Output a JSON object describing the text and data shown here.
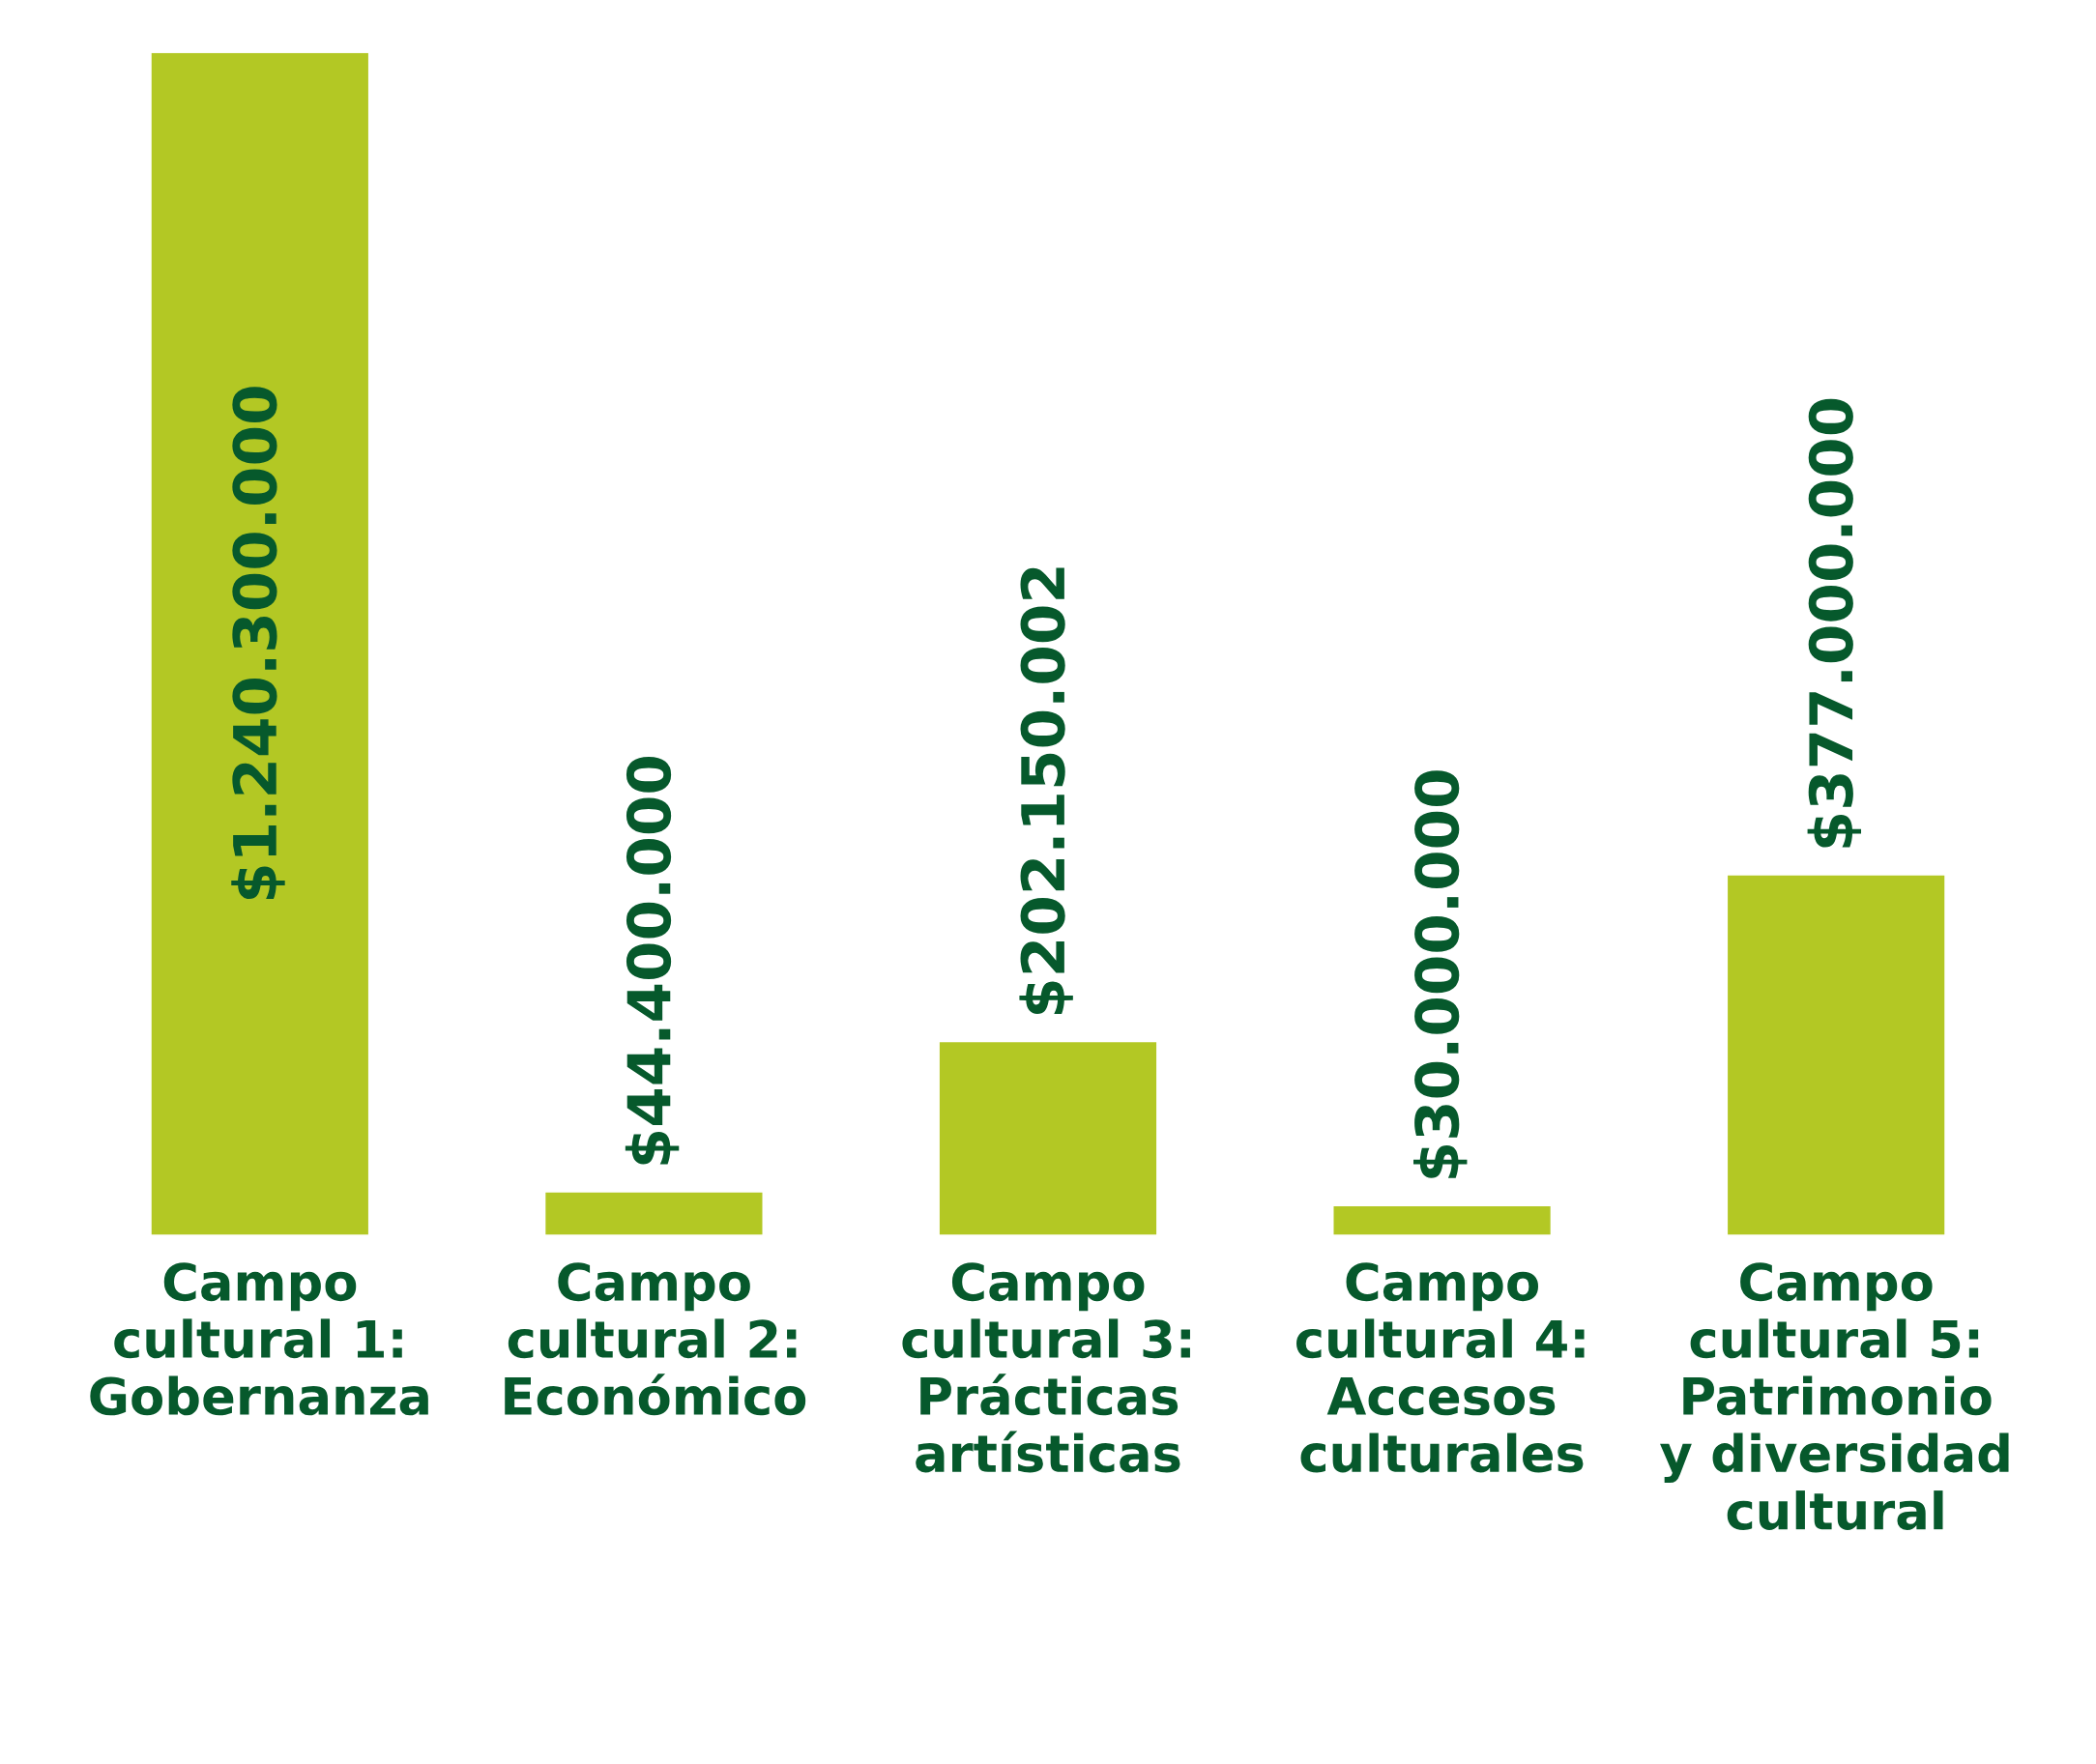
{
  "chart_data": {
    "type": "bar",
    "categories": [
      "Campo\ncultural 1:\nGobernanza",
      "Campo\ncultural 2:\nEconómico",
      "Campo\ncultural 3:\nPrácticas\nartísticas",
      "Campo\ncultural 4:\nAccesos\nculturales",
      "Campo\ncultural 5:\nPatrimonio\ny diversidad\ncultural"
    ],
    "values": [
      1240300000,
      44400000,
      202150002,
      30000000,
      377000000
    ],
    "value_labels": [
      "$1.240.300.000",
      "$44.400.000",
      "$202.150.002",
      "$30.000.000",
      "$377.000.000"
    ],
    "color": "#b3c824",
    "grid": false,
    "legend": false
  }
}
